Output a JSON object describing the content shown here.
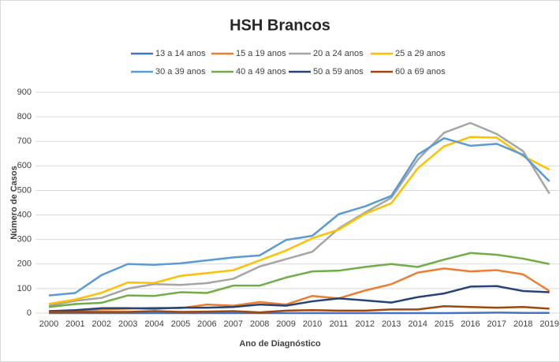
{
  "chart_data": {
    "type": "line",
    "title": "HSH Brancos",
    "x_label": "Ano de Diagnóstico",
    "y_label": "Número de Casos",
    "categories": [
      "2000",
      "2001",
      "2002",
      "2003",
      "2004",
      "2005",
      "2006",
      "2007",
      "2008",
      "2009",
      "2010",
      "2011",
      "2012",
      "2013",
      "2014",
      "2015",
      "2016",
      "2017",
      "2018",
      "2019"
    ],
    "series": [
      {
        "name": "13 a 14 anos",
        "color": "#4472c4",
        "values": [
          0,
          0,
          0,
          0,
          0,
          0,
          0,
          0,
          0,
          0,
          0,
          0,
          0,
          0,
          0,
          0,
          1,
          2,
          1,
          1
        ]
      },
      {
        "name": "15 a 19 anos",
        "color": "#ed7d31",
        "values": [
          5,
          10,
          15,
          18,
          22,
          20,
          35,
          30,
          45,
          35,
          70,
          60,
          92,
          118,
          165,
          182,
          170,
          175,
          158,
          90
        ]
      },
      {
        "name": "20 a 24 anos",
        "color": "#a5a5a5",
        "values": [
          30,
          50,
          62,
          100,
          118,
          115,
          122,
          140,
          190,
          220,
          250,
          345,
          410,
          470,
          625,
          735,
          775,
          730,
          660,
          487
        ]
      },
      {
        "name": "25 a 29 anos",
        "color": "#ffc000",
        "values": [
          38,
          55,
          83,
          125,
          123,
          152,
          163,
          175,
          215,
          255,
          305,
          340,
          405,
          448,
          590,
          680,
          718,
          715,
          640,
          585
        ]
      },
      {
        "name": "30 a 39 anos",
        "color": "#5b9bd5",
        "values": [
          72,
          82,
          155,
          200,
          197,
          203,
          215,
          227,
          235,
          298,
          315,
          403,
          435,
          478,
          645,
          713,
          682,
          690,
          645,
          537
        ]
      },
      {
        "name": "40 a 49 anos",
        "color": "#70ad47",
        "values": [
          25,
          37,
          42,
          72,
          70,
          85,
          82,
          112,
          112,
          145,
          170,
          173,
          188,
          200,
          188,
          218,
          245,
          238,
          222,
          200
        ]
      },
      {
        "name": "50 a 59 anos",
        "color": "#264478",
        "values": [
          8,
          12,
          20,
          20,
          18,
          22,
          22,
          25,
          35,
          30,
          48,
          60,
          52,
          43,
          65,
          80,
          108,
          110,
          90,
          85
        ]
      },
      {
        "name": "60 a 69 anos",
        "color": "#9e480e",
        "values": [
          5,
          5,
          5,
          5,
          8,
          5,
          6,
          8,
          3,
          10,
          12,
          10,
          10,
          15,
          15,
          28,
          25,
          22,
          25,
          18
        ]
      }
    ],
    "ylim": [
      0,
      900
    ],
    "yticks": [
      0,
      100,
      200,
      300,
      400,
      500,
      600,
      700,
      800,
      900
    ],
    "grid": true
  }
}
